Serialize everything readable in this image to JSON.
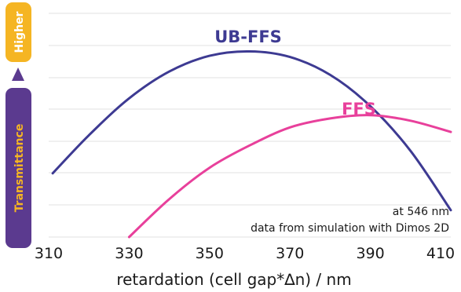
{
  "chart_data": {
    "type": "line",
    "xlabel": "retardation (cell gap*∆n) / nm",
    "ylabel": "Transmittance",
    "y_axis_high_label": "Higher",
    "x_ticks": [
      310,
      330,
      350,
      370,
      390,
      410
    ],
    "xlim": [
      310,
      410
    ],
    "ylim": [
      0,
      1
    ],
    "grid": "horizontal",
    "annotations": [
      "at 546 nm",
      "data from simulation with Dimos 2D"
    ],
    "series": [
      {
        "name": "UB-FFS",
        "color": "#3d3a92",
        "x": [
          311,
          320,
          330,
          340,
          350,
          360,
          370,
          380,
          390,
          400,
          410
        ],
        "y": [
          0.285,
          0.455,
          0.62,
          0.74,
          0.81,
          0.83,
          0.805,
          0.725,
          0.585,
          0.385,
          0.12
        ]
      },
      {
        "name": "FFS",
        "color": "#e8409b",
        "x": [
          330,
          340,
          350,
          360,
          370,
          380,
          390,
          400,
          410
        ],
        "y": [
          0.0,
          0.17,
          0.31,
          0.41,
          0.49,
          0.53,
          0.545,
          0.52,
          0.47
        ]
      }
    ]
  },
  "colors": {
    "pill_yellow": "#f5b523",
    "pill_purple": "#5b3a8f",
    "grid": "#e2e2e2"
  }
}
